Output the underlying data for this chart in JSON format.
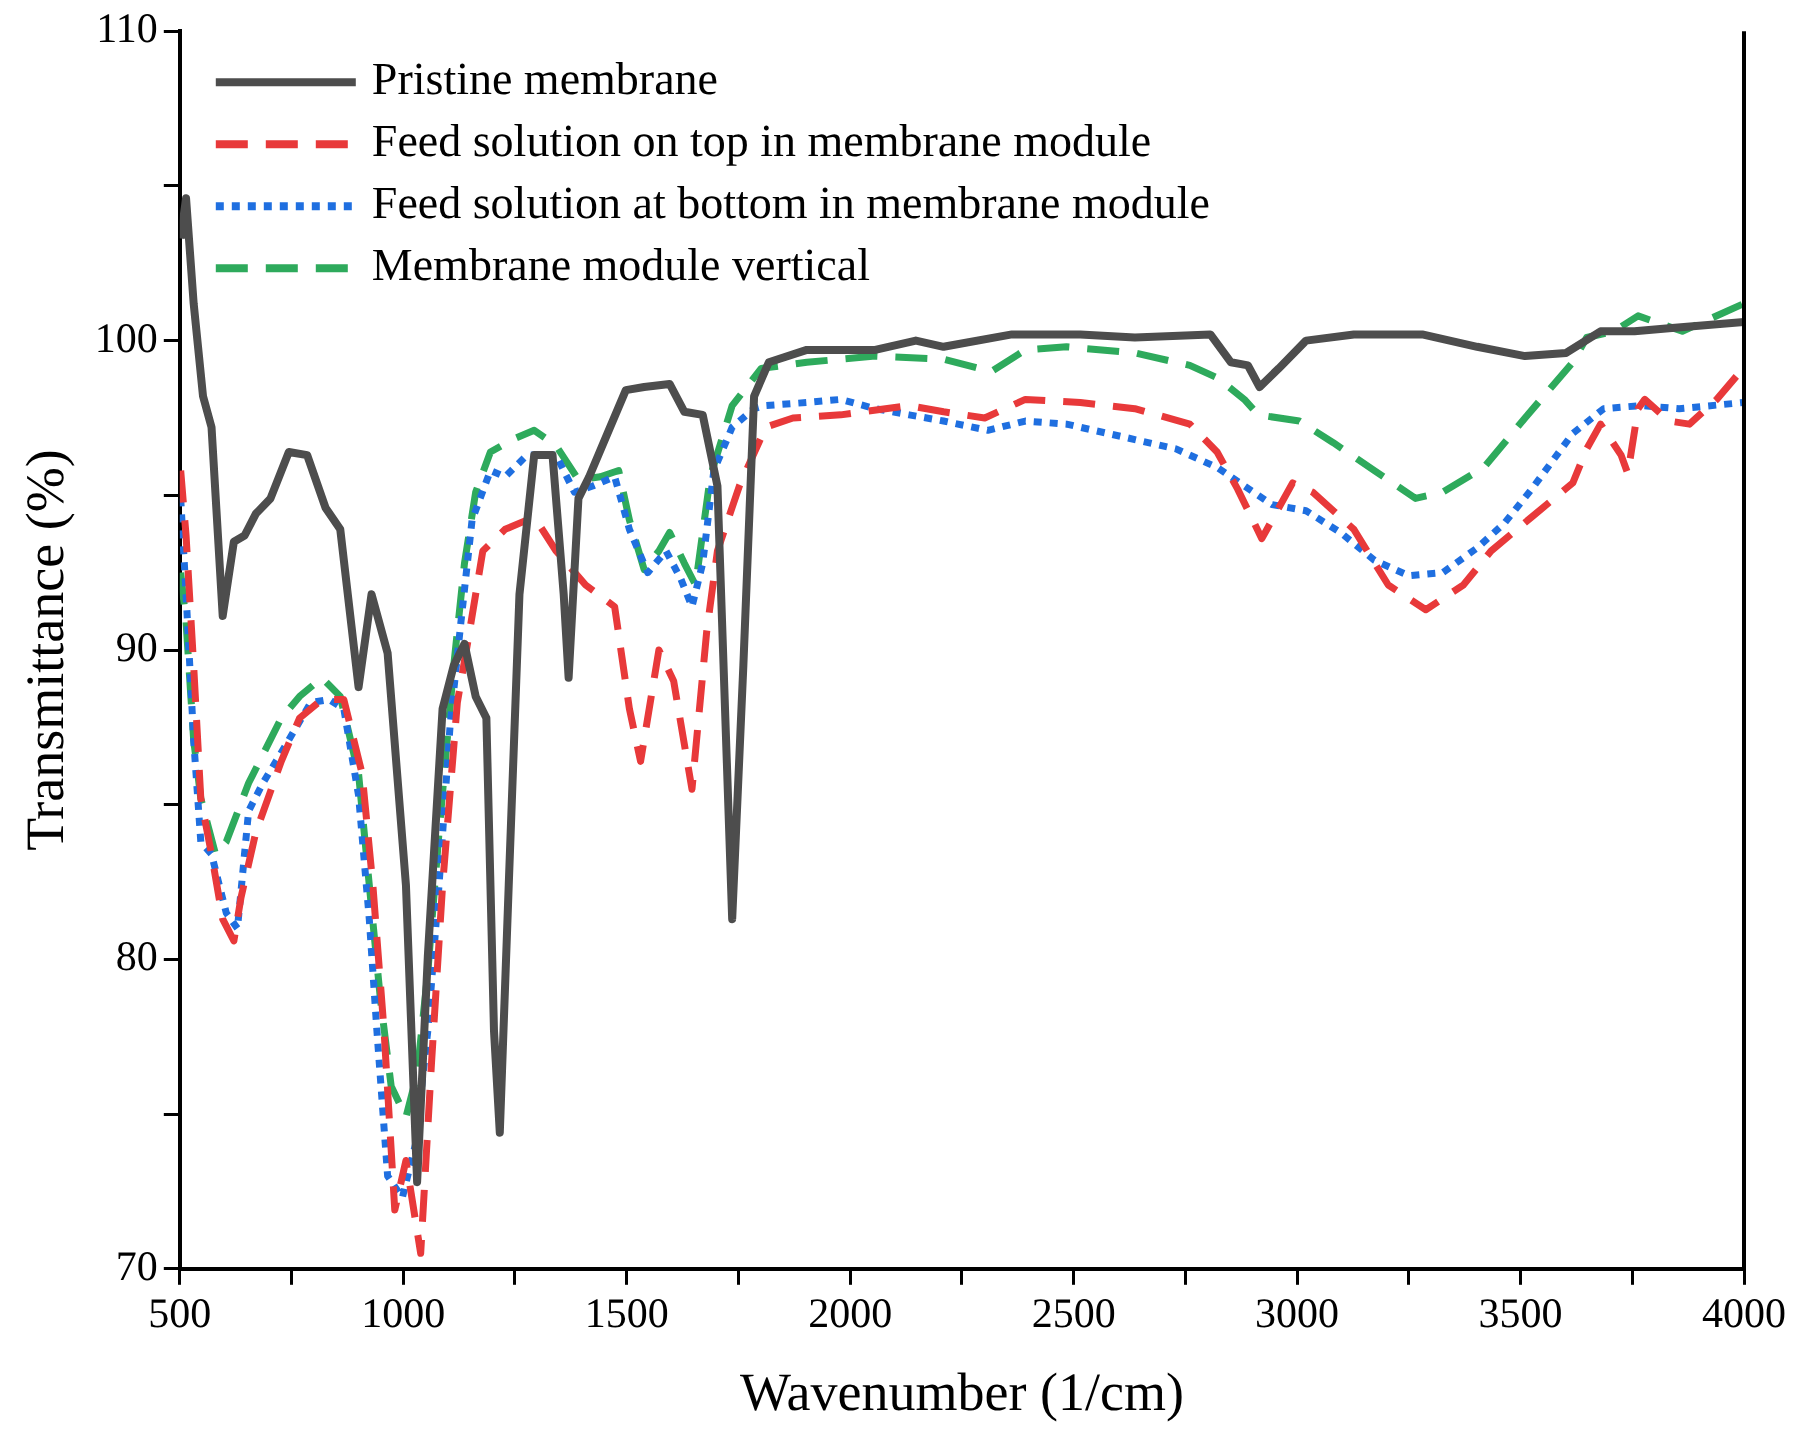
{
  "chart_data": {
    "type": "line",
    "xlabel": "Wavenumber (1/cm)",
    "ylabel": "Transmittance (%)",
    "xlim": [
      500,
      4000
    ],
    "ylim": [
      70,
      110
    ],
    "xticks": [
      500,
      {
        "value": 750,
        "label": null
      },
      1000,
      {
        "value": 1250,
        "label": null
      },
      1500,
      {
        "value": 1750,
        "label": null
      },
      2000,
      {
        "value": 2250,
        "label": null
      },
      2500,
      {
        "value": 2750,
        "label": null
      },
      3000,
      {
        "value": 3250,
        "label": null
      },
      3500,
      {
        "value": 3750,
        "label": null
      },
      4000
    ],
    "yticks": [
      70,
      {
        "value": 75,
        "label": null
      },
      80,
      {
        "value": 85,
        "label": null
      },
      90,
      {
        "value": 95,
        "label": null
      },
      100,
      {
        "value": 105,
        "label": null
      },
      110
    ],
    "grid": false,
    "legend": "top left",
    "marker": "none",
    "series": [
      {
        "name": "Pristine membrane",
        "color": "#4d4d4d",
        "line_style": "solid",
        "x": [
          502,
          514,
          531,
          552,
          571,
          596,
          621,
          645,
          670,
          703,
          744,
          785,
          826,
          859,
          900,
          929,
          965,
          1006,
          1031,
          1055,
          1088,
          1113,
          1137,
          1162,
          1186,
          1203,
          1216,
          1236,
          1260,
          1293,
          1334,
          1359,
          1370,
          1392,
          1416,
          1457,
          1498,
          1539,
          1596,
          1629,
          1670,
          1703,
          1736,
          1761,
          1785,
          1818,
          1903,
          2056,
          2147,
          2209,
          2362,
          2515,
          2637,
          2806,
          2852,
          2890,
          2916,
          2959,
          3020,
          3127,
          3280,
          3403,
          3510,
          3602,
          3679,
          3755,
          3832,
          4000
        ],
        "values": [
          103.3,
          104.6,
          101.2,
          98.2,
          97.2,
          91.1,
          93.5,
          93.7,
          94.4,
          94.9,
          96.4,
          96.3,
          94.6,
          93.9,
          88.8,
          91.8,
          89.9,
          82.4,
          72.8,
          80.1,
          88.1,
          89.5,
          90.2,
          88.5,
          87.8,
          77.7,
          74.4,
          82.4,
          91.8,
          96.3,
          96.3,
          91.8,
          89.1,
          94.9,
          95.6,
          97.0,
          98.4,
          98.5,
          98.6,
          97.7,
          97.6,
          95.3,
          81.3,
          89.5,
          98.2,
          99.3,
          99.7,
          99.7,
          100.0,
          99.8,
          100.2,
          100.2,
          100.1,
          100.2,
          99.3,
          99.2,
          98.5,
          99.1,
          100.0,
          100.2,
          100.2,
          99.8,
          99.5,
          99.6,
          100.3,
          100.3,
          100.4,
          100.6
        ]
      },
      {
        "name": "Feed solution on top in membrane module",
        "color": "#e8393a",
        "line_style": "dashed",
        "x": [
          502,
          514,
          531,
          547,
          571,
          596,
          621,
          637,
          670,
          727,
          768,
          818,
          867,
          908,
          932,
          957,
          981,
          1006,
          1039,
          1063,
          1088,
          1121,
          1146,
          1178,
          1228,
          1293,
          1342,
          1408,
          1473,
          1506,
          1531,
          1572,
          1605,
          1646,
          1679,
          1703,
          1752,
          1811,
          1872,
          1979,
          2132,
          2209,
          2301,
          2392,
          2515,
          2637,
          2760,
          2821,
          2867,
          2921,
          2990,
          3035,
          3127,
          3204,
          3288,
          3372,
          3434,
          3525,
          3617,
          3648,
          3679,
          3725,
          3740,
          3763,
          3778,
          3832,
          3878,
          3939,
          3992
        ],
        "values": [
          95.8,
          93.7,
          89.5,
          85.2,
          83.4,
          81.3,
          80.6,
          82.0,
          84.1,
          86.4,
          87.8,
          88.4,
          88.4,
          86.0,
          82.4,
          77.7,
          71.9,
          73.5,
          70.5,
          76.6,
          82.4,
          88.3,
          90.4,
          93.2,
          93.9,
          94.3,
          93.2,
          92.1,
          91.4,
          88.1,
          86.4,
          90.0,
          89.0,
          85.5,
          90.6,
          93.2,
          95.3,
          97.2,
          97.5,
          97.6,
          97.9,
          97.7,
          97.5,
          98.1,
          98.0,
          97.8,
          97.3,
          96.4,
          95.2,
          93.6,
          95.4,
          95.1,
          93.9,
          92.1,
          91.3,
          92.1,
          93.2,
          94.3,
          95.4,
          96.5,
          97.3,
          96.3,
          95.7,
          97.8,
          98.1,
          97.4,
          97.3,
          98.1,
          99.0
        ]
      },
      {
        "name": "Feed solution at bottom in membrane module",
        "color": "#1f6fe0",
        "line_style": "dotted",
        "x": [
          502,
          514,
          531,
          547,
          571,
          604,
          629,
          654,
          686,
          736,
          793,
          834,
          867,
          900,
          924,
          941,
          965,
          998,
          1027,
          1055,
          1080,
          1105,
          1129,
          1154,
          1195,
          1228,
          1277,
          1342,
          1383,
          1424,
          1473,
          1506,
          1547,
          1588,
          1621,
          1646,
          1670,
          1695,
          1736,
          1785,
          1811,
          1903,
          1979,
          2056,
          2132,
          2209,
          2308,
          2392,
          2484,
          2607,
          2729,
          2821,
          2882,
          2944,
          3020,
          3097,
          3173,
          3250,
          3326,
          3403,
          3464,
          3525,
          3617,
          3686,
          3770,
          3855,
          4000
        ],
        "values": [
          94.9,
          91.8,
          87.1,
          83.8,
          83.4,
          81.5,
          81.0,
          84.8,
          85.7,
          86.9,
          88.3,
          88.4,
          88.1,
          85.3,
          81.3,
          77.7,
          73.0,
          72.3,
          74.0,
          77.7,
          82.4,
          87.6,
          90.9,
          94.2,
          95.8,
          95.6,
          96.3,
          96.3,
          95.1,
          95.3,
          95.6,
          93.9,
          92.5,
          93.2,
          92.3,
          91.4,
          92.8,
          95.8,
          97.2,
          97.8,
          97.9,
          98.0,
          98.1,
          97.8,
          97.6,
          97.4,
          97.1,
          97.4,
          97.3,
          96.9,
          96.5,
          95.9,
          95.3,
          94.7,
          94.5,
          93.8,
          92.9,
          92.4,
          92.5,
          93.3,
          94.1,
          95.2,
          97.0,
          97.8,
          97.9,
          97.8,
          98.0
        ]
      },
      {
        "name": "Membrane module vertical",
        "color": "#2eaa5c",
        "line_style": "dashed",
        "x": [
          502,
          514,
          531,
          547,
          580,
          604,
          654,
          727,
          768,
          818,
          859,
          900,
          924,
          949,
          973,
          1006,
          1031,
          1055,
          1080,
          1113,
          1137,
          1162,
          1195,
          1244,
          1293,
          1342,
          1392,
          1441,
          1482,
          1506,
          1539,
          1572,
          1596,
          1629,
          1654,
          1687,
          1736,
          1801,
          1903,
          2056,
          2209,
          2316,
          2392,
          2484,
          2637,
          2760,
          2821,
          2882,
          2913,
          3005,
          3081,
          3173,
          3265,
          3326,
          3418,
          3510,
          3617,
          3648,
          3709,
          3763,
          3862,
          4000
        ],
        "values": [
          92.5,
          90.9,
          87.1,
          85.2,
          83.4,
          83.8,
          85.7,
          87.8,
          88.5,
          89.1,
          88.5,
          86.0,
          82.4,
          78.7,
          75.9,
          74.9,
          76.3,
          79.6,
          84.1,
          89.5,
          92.8,
          95.1,
          96.4,
          96.8,
          97.1,
          96.6,
          95.5,
          95.6,
          95.8,
          94.2,
          92.6,
          93.2,
          93.8,
          92.8,
          92.1,
          95.6,
          97.9,
          99.1,
          99.3,
          99.5,
          99.4,
          99.0,
          99.7,
          99.8,
          99.6,
          99.2,
          98.8,
          98.1,
          97.6,
          97.4,
          96.7,
          95.8,
          94.9,
          95.1,
          95.9,
          97.5,
          99.3,
          100.1,
          100.3,
          100.8,
          100.3,
          101.2
        ]
      }
    ]
  }
}
